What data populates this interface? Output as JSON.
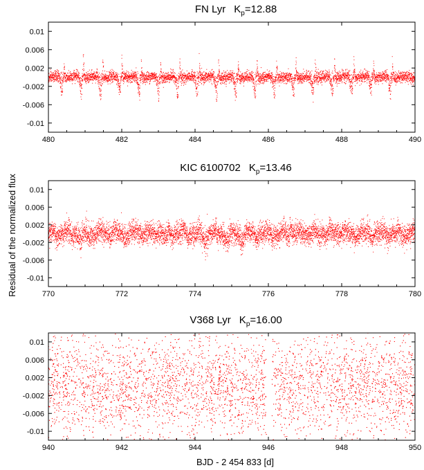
{
  "figure": {
    "ylabel": "Residual of the normalized flux",
    "xlabel": "BJD - 2 454 833 [d]"
  },
  "colors": {
    "points": "#ff0000",
    "axes": "#000000",
    "background": "#ffffff"
  },
  "chart_data": [
    {
      "type": "scatter",
      "title": "FN Lyr",
      "kp_label": "K",
      "kp_sub": "p",
      "kp_value": "=12.88",
      "xlim": [
        480,
        490
      ],
      "ylim": [
        -0.012,
        0.012
      ],
      "xticks": [
        "480",
        "482",
        "484",
        "486",
        "488",
        "490"
      ],
      "yticks": [
        "0.01",
        "0.006",
        "0.002",
        "-0.002",
        "-0.006",
        "-0.01"
      ],
      "ytick_values": [
        0.01,
        0.006,
        0.002,
        -0.002,
        -0.006,
        -0.01
      ],
      "xtick_values": [
        480,
        482,
        484,
        486,
        488,
        490
      ],
      "noise_sd": 0.0006,
      "pulsation_period_days": 0.527,
      "outlier_count": 12,
      "spikes_up": [
        480.42,
        480.95,
        481.48,
        482.0,
        482.53,
        483.06,
        483.58,
        484.11,
        484.64,
        485.17,
        485.69,
        486.22,
        486.75,
        487.27,
        487.8,
        488.33,
        488.86,
        489.38
      ],
      "spikes_down": [
        480.37,
        480.9,
        481.43,
        481.95,
        482.48,
        483.01,
        483.53,
        484.06,
        484.59,
        485.11,
        485.64,
        486.17,
        486.69,
        487.22,
        487.75,
        488.28,
        488.8,
        489.33
      ],
      "spike_up_depth": 0.005,
      "spike_down_depth": -0.005
    },
    {
      "type": "scatter",
      "title": "KIC 6100702",
      "kp_label": "K",
      "kp_sub": "p",
      "kp_value": "=13.46",
      "xlim": [
        770,
        780
      ],
      "ylim": [
        -0.012,
        0.012
      ],
      "xticks": [
        "770",
        "772",
        "774",
        "776",
        "778",
        "780"
      ],
      "yticks": [
        "0.01",
        "0.006",
        "0.002",
        "-0.002",
        "-0.006",
        "-0.01"
      ],
      "ytick_values": [
        0.01,
        0.006,
        0.002,
        -0.002,
        -0.006,
        -0.01
      ],
      "xtick_values": [
        770,
        772,
        774,
        776,
        778,
        780
      ],
      "noise_sd": 0.0012,
      "dips": [
        {
          "x": 770.9,
          "y": -0.0045
        },
        {
          "x": 773.2,
          "y": -0.0035
        },
        {
          "x": 774.3,
          "y": -0.0045
        },
        {
          "x": 774.9,
          "y": -0.0052
        },
        {
          "x": 775.3,
          "y": -0.0038
        },
        {
          "x": 776.3,
          "y": -0.0035
        }
      ],
      "peaks": [
        {
          "x": 772.5,
          "y": 0.004
        },
        {
          "x": 773.0,
          "y": 0.0037
        },
        {
          "x": 774.4,
          "y": 0.0042
        },
        {
          "x": 776.6,
          "y": 0.0044
        },
        {
          "x": 778.0,
          "y": 0.0033
        }
      ]
    },
    {
      "type": "scatter",
      "title": "V368 Lyr",
      "kp_label": "K",
      "kp_sub": "p",
      "kp_value": "=16.00",
      "xlim": [
        940,
        950
      ],
      "ylim": [
        -0.012,
        0.012
      ],
      "xticks": [
        "940",
        "942",
        "944",
        "946",
        "948",
        "950"
      ],
      "yticks": [
        "0.01",
        "0.006",
        "0.002",
        "-0.002",
        "-0.006",
        "-0.01"
      ],
      "ytick_values": [
        0.01,
        0.006,
        0.002,
        -0.002,
        -0.006,
        -0.01
      ],
      "xtick_values": [
        940,
        942,
        944,
        946,
        948,
        950
      ],
      "noise_sd": 0.0058,
      "gap": [
        945.95,
        946.1
      ]
    }
  ]
}
